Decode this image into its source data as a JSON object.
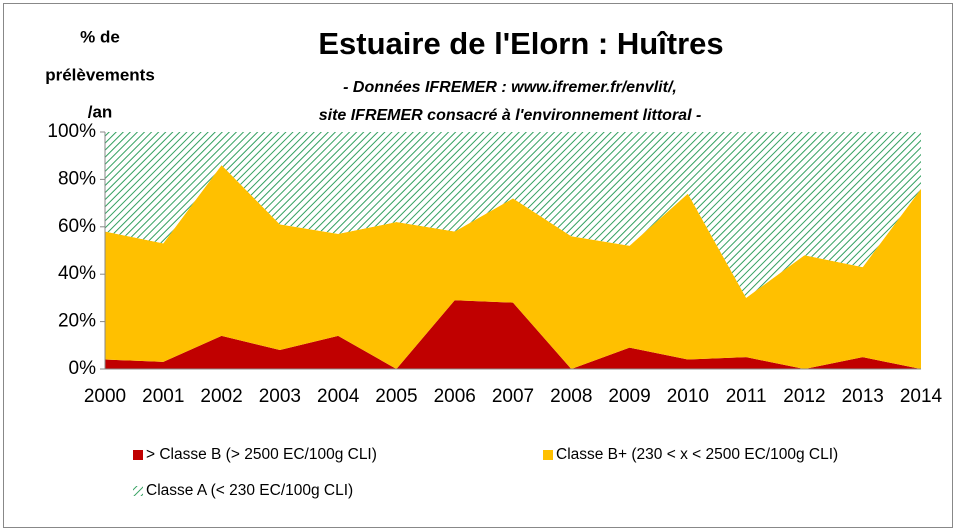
{
  "chart_data": {
    "type": "stacked_area",
    "title": "Estuaire de l'Elorn : Huîtres",
    "subtitle": [
      "- Données IFREMER :  www.ifremer.fr/envlit/,",
      "site IFREMER consacré à l'environnement littoral -"
    ],
    "y_axis_label": [
      "% de",
      "prélèvements",
      "/an"
    ],
    "categories": [
      "2000",
      "2001",
      "2002",
      "2003",
      "2004",
      "2005",
      "2006",
      "2007",
      "2008",
      "2009",
      "2010",
      "2011",
      "2012",
      "2013",
      "2014"
    ],
    "series": [
      {
        "name": "> Classe B (> 2500 EC/100g CLI)",
        "color": "#c00000",
        "values": [
          4,
          3,
          14,
          8,
          14,
          0,
          29,
          28,
          0,
          9,
          4,
          5,
          0,
          5,
          0
        ]
      },
      {
        "name": "Classe B+ (230 < x < 2500 EC/100g CLI)",
        "color": "#ffc000",
        "values": [
          54,
          50,
          72,
          53,
          43,
          62,
          29,
          44,
          56,
          43,
          70,
          25,
          48,
          38,
          76
        ]
      },
      {
        "name": "Classe A (< 230 EC/100g CLI)",
        "color": "#33a060",
        "values": [
          42,
          47,
          14,
          39,
          43,
          38,
          42,
          28,
          44,
          48,
          26,
          70,
          52,
          57,
          24
        ]
      }
    ],
    "ylim": [
      0,
      100
    ],
    "yticks": [
      {
        "value": 0,
        "label": "0%"
      },
      {
        "value": 20,
        "label": "20%"
      },
      {
        "value": 40,
        "label": "40%"
      },
      {
        "value": 60,
        "label": "60%"
      },
      {
        "value": 80,
        "label": "80%"
      },
      {
        "value": 100,
        "label": "100%"
      }
    ],
    "grid": false
  }
}
